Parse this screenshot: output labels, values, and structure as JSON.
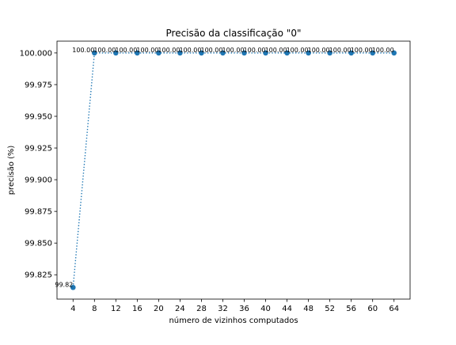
{
  "chart_data": {
    "type": "line",
    "title": "Precisão da classificação \"0\"",
    "xlabel": "número de vizinhos computados",
    "ylabel": "precisão (%)",
    "x": [
      4,
      8,
      12,
      16,
      20,
      24,
      28,
      32,
      36,
      40,
      44,
      48,
      52,
      56,
      60,
      64
    ],
    "series": [
      {
        "values": [
          99.815,
          100,
          100,
          100,
          100,
          100,
          100,
          100,
          100,
          100,
          100,
          100,
          100,
          100,
          100,
          100
        ],
        "labels": [
          "99.82",
          "100.00",
          "100.00",
          "100.00",
          "100.00",
          "100.00",
          "100.00",
          "100.00",
          "100.00",
          "100.00",
          "100.00",
          "100.00",
          "100.00",
          "100.00",
          "100.00",
          "100.00"
        ],
        "color": "#1f77b4",
        "line_style": "dotted",
        "marker": "circle"
      }
    ],
    "xticks": [
      "4",
      "8",
      "12",
      "16",
      "20",
      "24",
      "28",
      "32",
      "36",
      "40",
      "44",
      "48",
      "52",
      "56",
      "60",
      "64"
    ],
    "yticks": [
      {
        "value": 99.825,
        "label": "99.825"
      },
      {
        "value": 99.85,
        "label": "99.850"
      },
      {
        "value": 99.875,
        "label": "99.875"
      },
      {
        "value": 99.9,
        "label": "99.900"
      },
      {
        "value": 99.925,
        "label": "99.925"
      },
      {
        "value": 99.95,
        "label": "99.950"
      },
      {
        "value": 99.975,
        "label": "99.975"
      },
      {
        "value": 100.0,
        "label": "100.000"
      }
    ],
    "xlim": [
      1.0,
      67.0
    ],
    "ylim": [
      99.8058,
      100.0093
    ],
    "grid": false,
    "legend": "none"
  }
}
